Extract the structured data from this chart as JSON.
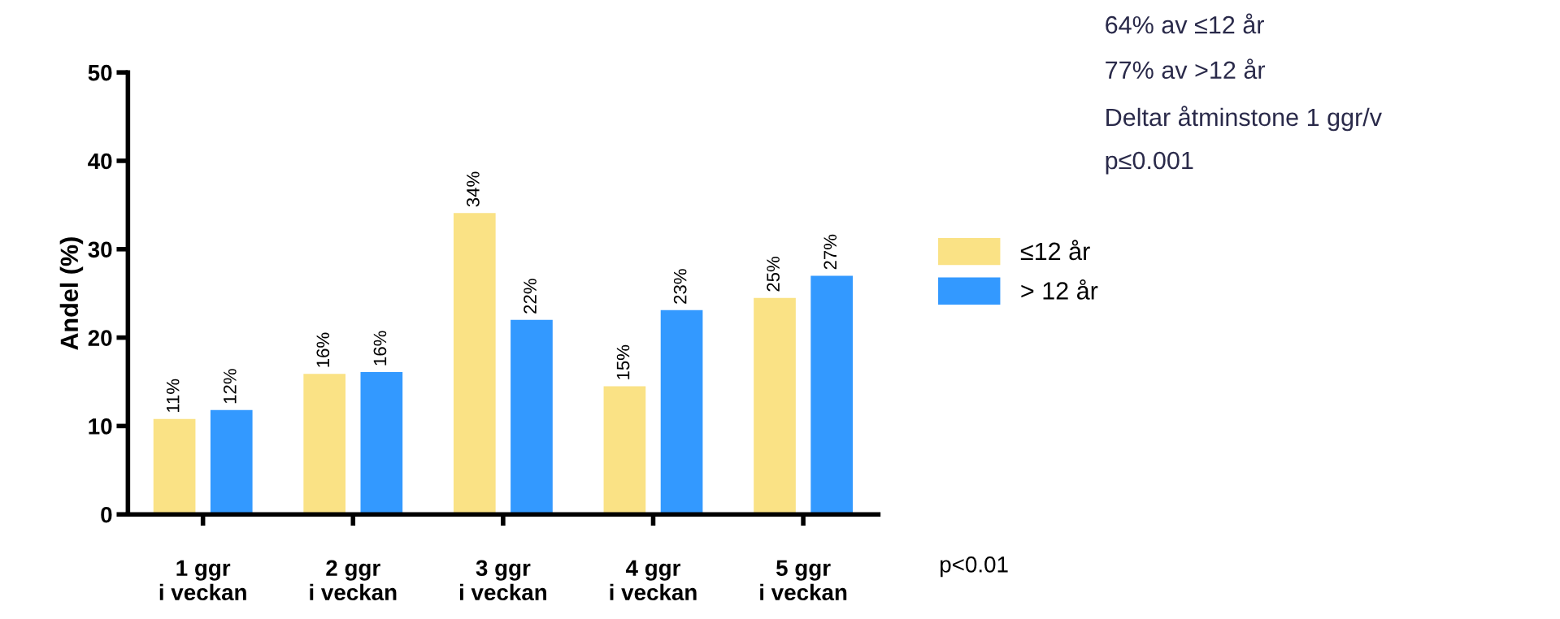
{
  "chart_data": {
    "type": "bar",
    "ylabel": "Andel (%)",
    "categories": [
      "1 ggr\ni veckan",
      "2 ggr\ni veckan",
      "3 ggr\ni veckan",
      "4 ggr\ni veckan",
      "5 ggr\ni veckan"
    ],
    "series": [
      {
        "name": "≤12 år",
        "color": "#fae285",
        "values": [
          10.8,
          15.9,
          34.1,
          14.5,
          24.5
        ],
        "value_labels": [
          "11%",
          "16%",
          "34%",
          "15%",
          "25%"
        ]
      },
      {
        "name": "> 12 år",
        "color": "#3399ff",
        "values": [
          11.8,
          16.1,
          22.0,
          23.1,
          27.0
        ],
        "value_labels": [
          "12%",
          "16%",
          "22%",
          "23%",
          "27%"
        ]
      }
    ],
    "ylim": [
      0,
      50
    ],
    "yticks": [
      0,
      10,
      20,
      30,
      40,
      50
    ],
    "grid": false,
    "legend": "right",
    "annotations": [
      "64% av ≤12 år",
      "77% av >12 år",
      "Deltar åtminstone 1 ggr/v",
      "p≤0.001",
      "p<0.01"
    ]
  }
}
